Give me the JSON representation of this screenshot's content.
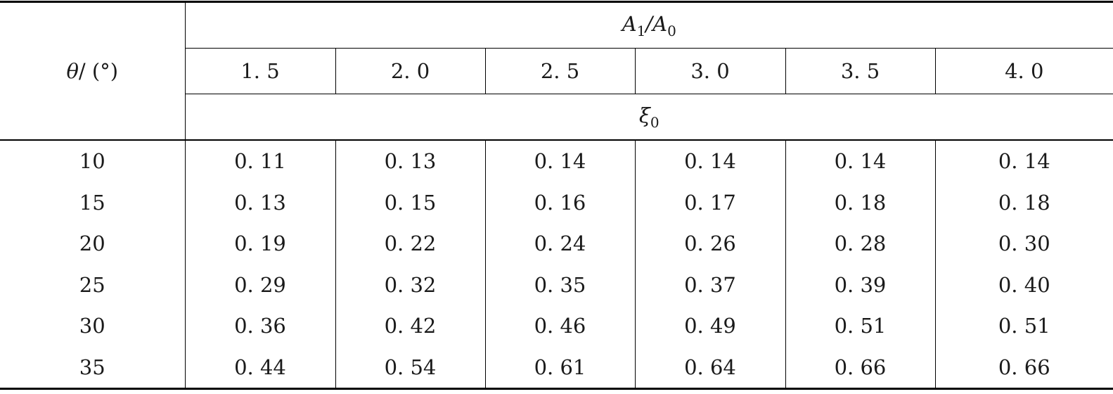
{
  "table": {
    "row_header": {
      "symbol": "θ",
      "unit": "/ (°)"
    },
    "group_header": {
      "symbol": "A",
      "sub1": "1",
      "slash": "/",
      "symbol2": "A",
      "sub2": "0"
    },
    "value_header": {
      "symbol": "ξ",
      "sub": "0"
    },
    "columns": [
      "1. 5",
      "2. 0",
      "2. 5",
      "3. 0",
      "3. 5",
      "4. 0"
    ],
    "rows": [
      {
        "theta": "10",
        "values": [
          "0. 11",
          "0. 13",
          "0. 14",
          "0. 14",
          "0. 14",
          "0. 14"
        ]
      },
      {
        "theta": "15",
        "values": [
          "0. 13",
          "0. 15",
          "0. 16",
          "0. 17",
          "0. 18",
          "0. 18"
        ]
      },
      {
        "theta": "20",
        "values": [
          "0. 19",
          "0. 22",
          "0. 24",
          "0. 26",
          "0. 28",
          "0. 30"
        ]
      },
      {
        "theta": "25",
        "values": [
          "0. 29",
          "0. 32",
          "0. 35",
          "0. 37",
          "0. 39",
          "0. 40"
        ]
      },
      {
        "theta": "30",
        "values": [
          "0. 36",
          "0. 42",
          "0. 46",
          "0. 49",
          "0. 51",
          "0. 51"
        ]
      },
      {
        "theta": "35",
        "values": [
          "0. 44",
          "0. 54",
          "0. 61",
          "0. 64",
          "0. 66",
          "0. 66"
        ]
      }
    ]
  }
}
